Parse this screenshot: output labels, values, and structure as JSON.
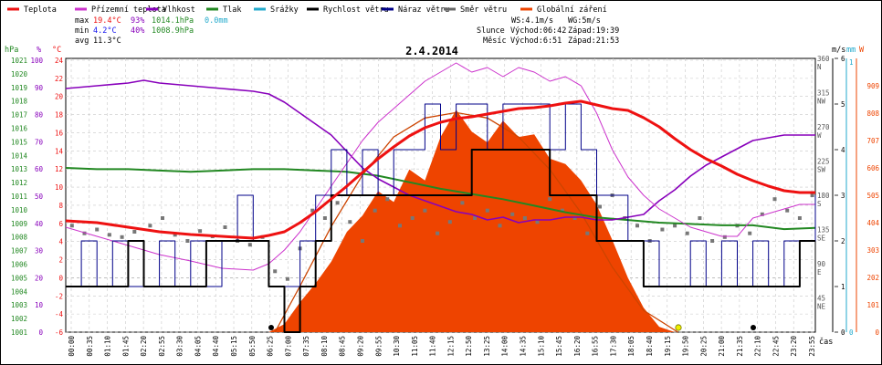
{
  "legend": [
    {
      "label": "Teplota",
      "color": "#ee1111"
    },
    {
      "label": "Přízemní teplota",
      "color": "#cc33cc"
    },
    {
      "label": "Vlhkost",
      "color": "#8800bb"
    },
    {
      "label": "Tlak",
      "color": "#228822"
    },
    {
      "label": "Srážky",
      "color": "#22aacc"
    },
    {
      "label": "Rychlost větru",
      "color": "#000000"
    },
    {
      "label": "Náraz větru",
      "color": "#000088"
    },
    {
      "label": "Směr větru",
      "color": "#666666"
    },
    {
      "label": "Globální záření",
      "color": "#ee4400"
    }
  ],
  "stats": {
    "max_label": "max",
    "max_t": "19.4°C",
    "max_h": "93%",
    "max_p": "1014.1hPa",
    "max_r": "0.0mm",
    "min_label": "min",
    "min_t": "4.2°C",
    "min_h": "40%",
    "min_p": "1008.9hPa",
    "avg_label": "avg",
    "avg_t": "11.3°C"
  },
  "wind_summary": {
    "ws": "WS:4.1m/s",
    "wg": "WG:5m/s"
  },
  "sun": {
    "label": "Slunce",
    "rise": "Východ:06:42",
    "set": "Západ:19:39"
  },
  "moon": {
    "label": "Měsíc",
    "rise": "Východ:6:51",
    "set": "Západ:21:53"
  },
  "axis_units": {
    "hpa": "hPa",
    "pct": "%",
    "degc": "°C",
    "ms": "m/s",
    "mm": "mm",
    "w": "W",
    "cas": "čas"
  },
  "chart_data": {
    "type": "line",
    "title": "2.4.2014",
    "x_range_hours": [
      0,
      24
    ],
    "x_tick_labels": [
      "00:00",
      "00:35",
      "01:10",
      "01:45",
      "02:20",
      "02:55",
      "03:30",
      "04:05",
      "04:40",
      "05:15",
      "05:50",
      "06:25",
      "07:00",
      "07:35",
      "08:10",
      "08:45",
      "09:20",
      "09:55",
      "10:30",
      "11:05",
      "11:40",
      "12:15",
      "12:50",
      "13:25",
      "14:00",
      "14:35",
      "15:10",
      "15:45",
      "16:20",
      "16:55",
      "17:30",
      "18:05",
      "18:40",
      "19:15",
      "19:50",
      "20:25",
      "21:00",
      "21:35",
      "22:10",
      "22:45",
      "23:20",
      "23:55"
    ],
    "axes": {
      "pressure_hpa": {
        "range": [
          1001,
          1022
        ],
        "ticks": [
          "1021",
          "1020",
          "1019",
          "1018",
          "1017",
          "1016",
          "1015",
          "1014",
          "1013",
          "1012",
          "1011",
          "1010",
          "1009",
          "1008",
          "1007",
          "1006",
          "1005",
          "1004",
          "1003",
          "1002",
          "1001"
        ]
      },
      "humidity_pct": {
        "range": [
          0,
          100
        ],
        "ticks": [
          "100",
          "90",
          "80",
          "70",
          "60",
          "50",
          "40",
          "30",
          "20",
          "10",
          "0"
        ]
      },
      "temperature_c": {
        "range": [
          -6,
          24
        ],
        "ticks": [
          "24",
          "22",
          "20",
          "18",
          "16",
          "14",
          "12",
          "10",
          "8",
          "6",
          "4",
          "2",
          "0",
          "-2",
          "-4",
          "-6"
        ]
      },
      "wind_dir": {
        "range": [
          0,
          360
        ],
        "ticks": [
          {
            "v": "360",
            "l": "N"
          },
          {
            "v": "315",
            "l": "NW"
          },
          {
            "v": "270",
            "l": "W"
          },
          {
            "v": "225",
            "l": "SW"
          },
          {
            "v": "180",
            "l": "S"
          },
          {
            "v": "135",
            "l": "SE"
          },
          {
            "v": "90",
            "l": "E"
          },
          {
            "v": "45",
            "l": "NE"
          }
        ]
      },
      "wind_ms": {
        "range": [
          0,
          6
        ],
        "ticks": [
          "6",
          "5",
          "4",
          "3",
          "2",
          "1",
          "0"
        ]
      },
      "rain_mm": {
        "range": [
          0,
          1
        ],
        "ticks": [
          "1",
          "0"
        ]
      },
      "radiation_w": {
        "range": [
          0,
          1010
        ],
        "ticks": [
          "909",
          "808",
          "707",
          "606",
          "505",
          "404",
          "303",
          "202",
          "101",
          "0"
        ]
      }
    },
    "series": [
      {
        "name": "Teplota",
        "color": "#ee1111",
        "axis": "temperature_c",
        "x": [
          0,
          1,
          2,
          3,
          4,
          5,
          6,
          6.5,
          7,
          7.5,
          8,
          8.5,
          9,
          9.5,
          10,
          10.5,
          11,
          11.5,
          12,
          12.5,
          13,
          13.5,
          14,
          14.5,
          15,
          15.5,
          16,
          16.5,
          17,
          17.5,
          18,
          18.5,
          19,
          19.5,
          20,
          20.5,
          21,
          21.5,
          22,
          22.5,
          23,
          23.5,
          24
        ],
        "y": [
          6.2,
          6.0,
          5.5,
          5.0,
          4.7,
          4.5,
          4.3,
          4.6,
          5.0,
          6.0,
          7.2,
          8.6,
          10.0,
          11.5,
          13.0,
          14.3,
          15.5,
          16.4,
          17.0,
          17.4,
          17.6,
          17.9,
          18.2,
          18.5,
          18.6,
          18.8,
          19.1,
          19.3,
          18.9,
          18.5,
          18.3,
          17.5,
          16.5,
          15.2,
          14.0,
          13.0,
          12.2,
          11.3,
          10.6,
          10.0,
          9.5,
          9.3,
          9.3
        ]
      },
      {
        "name": "Přízemní teplota",
        "color": "#cc33cc",
        "axis": "temperature_c",
        "x": [
          0,
          1,
          2,
          3,
          4,
          5,
          6,
          6.5,
          7,
          7.5,
          8,
          8.5,
          9,
          9.5,
          10,
          10.5,
          11,
          11.5,
          12,
          12.5,
          13,
          13.5,
          14,
          14.5,
          15,
          15.5,
          16,
          16.5,
          17,
          17.5,
          18,
          18.5,
          19,
          19.5,
          20,
          20.5,
          21,
          21.5,
          22,
          22.5,
          23,
          23.5,
          24
        ],
        "y": [
          5.5,
          4.5,
          3.5,
          2.5,
          1.8,
          1.0,
          0.8,
          1.5,
          3.0,
          5.0,
          7.5,
          10.0,
          12.5,
          15.0,
          17.0,
          18.5,
          20.0,
          21.5,
          22.5,
          23.5,
          22.5,
          23.0,
          22.0,
          23.0,
          22.5,
          21.5,
          22.0,
          21.0,
          18.0,
          14.0,
          11.0,
          9.0,
          7.5,
          6.5,
          5.5,
          5.0,
          4.5,
          4.5,
          6.5,
          7.0,
          7.5,
          8.0,
          8.0
        ]
      },
      {
        "name": "Vlhkost",
        "color": "#8800bb",
        "axis": "humidity_pct",
        "x": [
          0,
          1,
          2,
          2.5,
          3,
          4,
          5,
          6,
          6.5,
          7,
          7.5,
          8,
          8.5,
          9,
          9.5,
          10,
          10.5,
          11,
          11.5,
          12,
          12.5,
          13,
          13.5,
          14,
          14.5,
          15,
          15.5,
          16,
          16.5,
          17,
          17.5,
          18,
          18.5,
          19,
          19.5,
          20,
          20.5,
          21,
          21.5,
          22,
          22.5,
          23,
          23.5,
          24
        ],
        "y": [
          89,
          90,
          91,
          92,
          91,
          90,
          89,
          88,
          87,
          84,
          80,
          76,
          72,
          66,
          60,
          56,
          53,
          50,
          48,
          46,
          44,
          43,
          41,
          42,
          40,
          41,
          41,
          42,
          42,
          41,
          41,
          42,
          43,
          48,
          52,
          57,
          61,
          64,
          67,
          70,
          71,
          72,
          72,
          72
        ]
      },
      {
        "name": "Tlak",
        "color": "#228822",
        "axis": "pressure_hpa",
        "x": [
          0,
          1,
          2,
          3,
          4,
          5,
          6,
          6.5,
          7,
          8,
          9,
          10,
          11,
          12,
          13,
          14,
          15,
          16,
          17,
          18,
          19,
          20,
          21,
          22,
          23,
          24
        ],
        "y": [
          1013.6,
          1013.5,
          1013.5,
          1013.4,
          1013.3,
          1013.4,
          1013.5,
          1013.5,
          1013.5,
          1013.4,
          1013.3,
          1013.0,
          1012.5,
          1012.0,
          1011.6,
          1011.2,
          1010.7,
          1010.2,
          1009.8,
          1009.6,
          1009.4,
          1009.3,
          1009.2,
          1009.2,
          1008.9,
          1009.0
        ]
      },
      {
        "name": "Rychlost větru",
        "color": "#000000",
        "axis": "wind_ms",
        "x": [
          0,
          0.5,
          1,
          1.5,
          2,
          2.5,
          3,
          3.5,
          4,
          4.5,
          5,
          5.5,
          6,
          6.5,
          7,
          7.5,
          8,
          8.5,
          9,
          9.5,
          10,
          10.5,
          11,
          11.5,
          12,
          12.5,
          13,
          13.5,
          14,
          14.5,
          15,
          15.5,
          16,
          16.5,
          17,
          17.5,
          18,
          18.5,
          19,
          19.5,
          20,
          20.5,
          21,
          21.5,
          22,
          22.5,
          23,
          23.5,
          24
        ],
        "y": [
          1,
          1,
          1,
          1,
          2,
          1,
          1,
          1,
          1,
          2,
          2,
          2,
          2,
          1,
          0,
          1,
          2,
          3,
          3,
          3,
          3,
          3,
          3,
          3,
          3,
          3,
          4,
          4,
          4,
          4,
          4,
          3,
          3,
          3,
          2,
          2,
          2,
          1,
          1,
          1,
          1,
          1,
          1,
          1,
          1,
          1,
          1,
          2,
          2
        ]
      },
      {
        "name": "Náraz větru",
        "color": "#000088",
        "axis": "wind_ms",
        "x": [
          0,
          0.5,
          1,
          1.5,
          2,
          2.5,
          3,
          3.5,
          4,
          4.5,
          5,
          5.5,
          6,
          6.5,
          7,
          7.5,
          8,
          8.5,
          9,
          9.5,
          10,
          10.5,
          11,
          11.5,
          12,
          12.5,
          13,
          13.5,
          14,
          14.5,
          15,
          15.5,
          16,
          16.5,
          17,
          17.5,
          18,
          18.5,
          19,
          19.5,
          20,
          20.5,
          21,
          21.5,
          22,
          22.5,
          23,
          23.5,
          24
        ],
        "y": [
          1,
          2,
          1,
          2,
          1,
          1,
          2,
          1,
          2,
          1,
          2,
          3,
          2,
          1,
          1,
          2,
          3,
          4,
          3,
          4,
          3,
          4,
          4,
          5,
          4,
          5,
          5,
          4,
          5,
          5,
          5,
          4,
          5,
          4,
          3,
          3,
          2,
          2,
          1,
          1,
          2,
          1,
          2,
          1,
          2,
          1,
          2,
          2,
          3
        ]
      },
      {
        "name": "Globální záření",
        "color": "#ee4400",
        "axis": "radiation_w",
        "x": [
          6.5,
          7,
          7.5,
          8,
          8.5,
          9,
          9.5,
          10,
          10.5,
          11,
          11.5,
          12,
          12.5,
          13,
          13.5,
          14,
          14.5,
          15,
          15.5,
          16,
          16.5,
          17,
          17.5,
          18,
          18.5,
          19,
          19.5
        ],
        "y": [
          0,
          30,
          110,
          180,
          260,
          370,
          430,
          520,
          480,
          600,
          560,
          720,
          820,
          740,
          700,
          780,
          720,
          730,
          640,
          620,
          560,
          470,
          340,
          200,
          90,
          20,
          0
        ]
      },
      {
        "name": "Globální záření (clear sky)",
        "color": "#cc4400",
        "axis": "radiation_w",
        "x": [
          6.7,
          7.5,
          8.5,
          9.5,
          10.5,
          11.5,
          12.5,
          13.5,
          14.5,
          15.5,
          16.5,
          17.5,
          18.5,
          19.6
        ],
        "y": [
          0,
          170,
          390,
          580,
          720,
          790,
          810,
          790,
          720,
          600,
          440,
          240,
          80,
          0
        ]
      }
    ],
    "wind_direction_points": {
      "axis": "wind_dir",
      "x": [
        0.2,
        0.6,
        1,
        1.4,
        1.8,
        2.2,
        2.7,
        3.1,
        3.5,
        3.9,
        4.3,
        4.7,
        5.1,
        5.5,
        5.9,
        6.3,
        6.7,
        7.1,
        7.5,
        7.9,
        8.3,
        8.7,
        9.1,
        9.5,
        9.9,
        10.3,
        10.7,
        11.1,
        11.5,
        11.9,
        12.3,
        12.7,
        13.1,
        13.5,
        13.9,
        14.3,
        14.7,
        15.1,
        15.5,
        15.9,
        16.3,
        16.7,
        17.1,
        17.5,
        17.9,
        18.3,
        18.7,
        19.1,
        19.5,
        19.9,
        20.3,
        20.7,
        21.1,
        21.5,
        21.9,
        22.3,
        22.7,
        23.1,
        23.5,
        23.9
      ],
      "y": [
        140,
        130,
        135,
        128,
        125,
        132,
        140,
        150,
        128,
        120,
        133,
        126,
        138,
        120,
        115,
        125,
        80,
        70,
        110,
        160,
        150,
        170,
        145,
        120,
        160,
        175,
        140,
        150,
        160,
        130,
        145,
        170,
        150,
        160,
        140,
        155,
        150,
        145,
        175,
        160,
        150,
        130,
        165,
        180,
        150,
        140,
        120,
        135,
        140,
        130,
        150,
        120,
        125,
        140,
        130,
        155,
        175,
        160,
        150,
        180
      ]
    }
  }
}
